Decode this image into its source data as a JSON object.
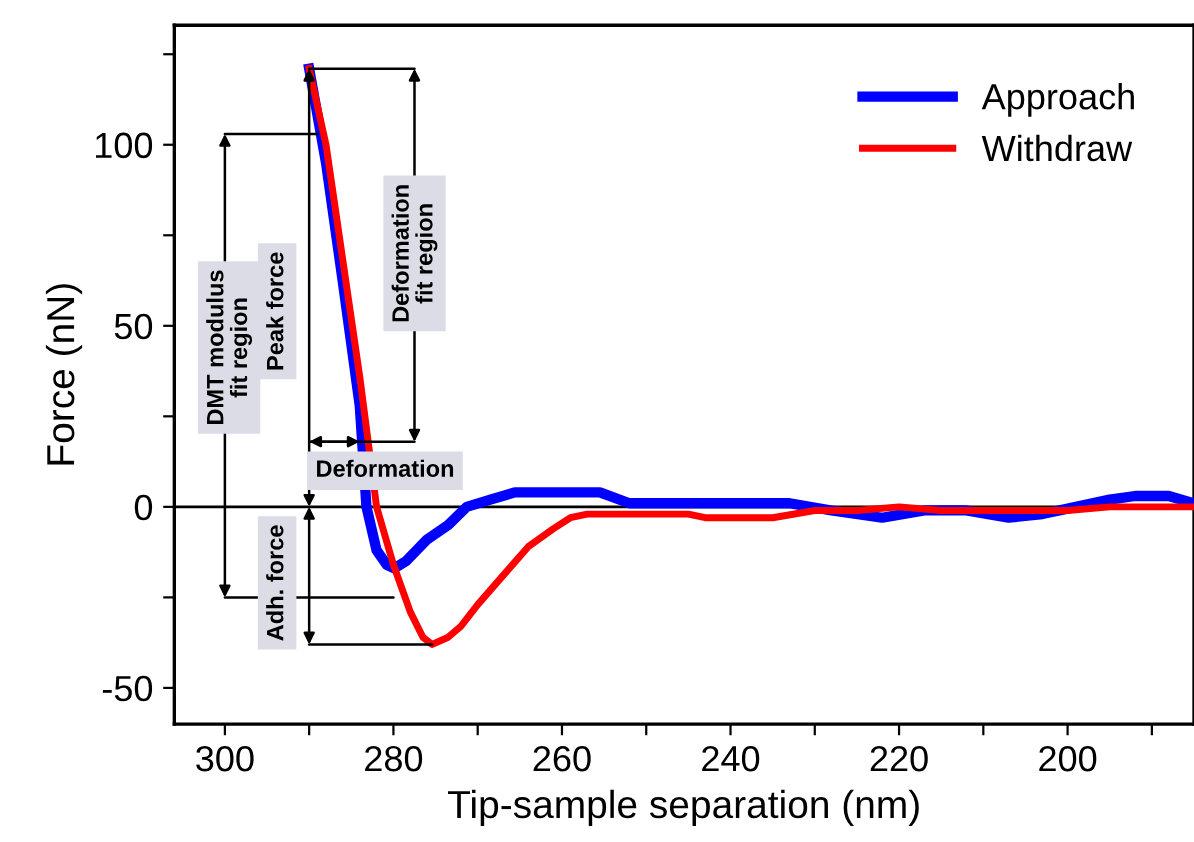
{
  "chart_data": {
    "type": "line",
    "xlabel": "Tip-sample separation (nm)",
    "ylabel": "Force (nN)",
    "xlim": [
      306,
      185
    ],
    "ylim": [
      -60,
      133
    ],
    "xticks": [
      300,
      {
        "value": 290,
        "label": null
      },
      280,
      {
        "value": 270,
        "label": null
      },
      260,
      {
        "value": 250,
        "label": null
      },
      240,
      {
        "value": 230,
        "label": null
      },
      220,
      {
        "value": 210,
        "label": null
      },
      200,
      {
        "value": 190,
        "label": null
      }
    ],
    "yticks": [
      {
        "value": -50,
        "label": "-50"
      },
      {
        "value": -25,
        "label": null
      },
      0,
      {
        "value": 25,
        "label": null
      },
      50,
      {
        "value": 75,
        "label": null
      },
      100,
      {
        "value": 125,
        "label": null
      }
    ],
    "grid": false,
    "legend": "top right",
    "line_style": "solid",
    "marker": "none",
    "ref_lines": [
      {
        "axis": "y",
        "value": 0,
        "color": "#000000"
      }
    ],
    "annotations": [
      "DMT modulus\nfit region",
      "Peak force",
      "Deformation\nfit region",
      "Deformation",
      {
        "text": "Adh. force",
        "x": 275.4,
        "y": -38
      }
    ],
    "series": [
      {
        "name": "Approach",
        "color": "#0000ff",
        "x": [
          290,
          288,
          286,
          284,
          283.2,
          282,
          280.8,
          279.9,
          278.5,
          276,
          273.5,
          271.3,
          268.5,
          265.6,
          260,
          255.5,
          252,
          240,
          233,
          228,
          222,
          217,
          212,
          207,
          203,
          199,
          195,
          192,
          188,
          185
        ],
        "values": [
          121,
          95,
          62,
          28,
          0,
          -12,
          -16,
          -17,
          -15,
          -9,
          -5,
          0,
          2,
          4,
          4,
          4,
          1,
          1,
          1,
          -1,
          -3,
          -1,
          -1,
          -3,
          -2,
          0,
          2,
          3,
          3,
          1
        ]
      },
      {
        "name": "Withdraw",
        "color": "#ff0000",
        "x": [
          290,
          288,
          286,
          284,
          282,
          280,
          278,
          276.5,
          275.4,
          273.5,
          272,
          270,
          267,
          264,
          261,
          259,
          257,
          250,
          245,
          243,
          235,
          230,
          225,
          220,
          215,
          205,
          200,
          195,
          190,
          185
        ],
        "values": [
          121,
          100,
          68,
          36,
          0,
          -16,
          -29,
          -36,
          -38,
          -36,
          -33,
          -27,
          -19,
          -11,
          -6,
          -3,
          -2,
          -2,
          -2,
          -3,
          -3,
          -1,
          -1,
          0,
          -1,
          -1,
          -1,
          0,
          0,
          0
        ]
      }
    ]
  }
}
